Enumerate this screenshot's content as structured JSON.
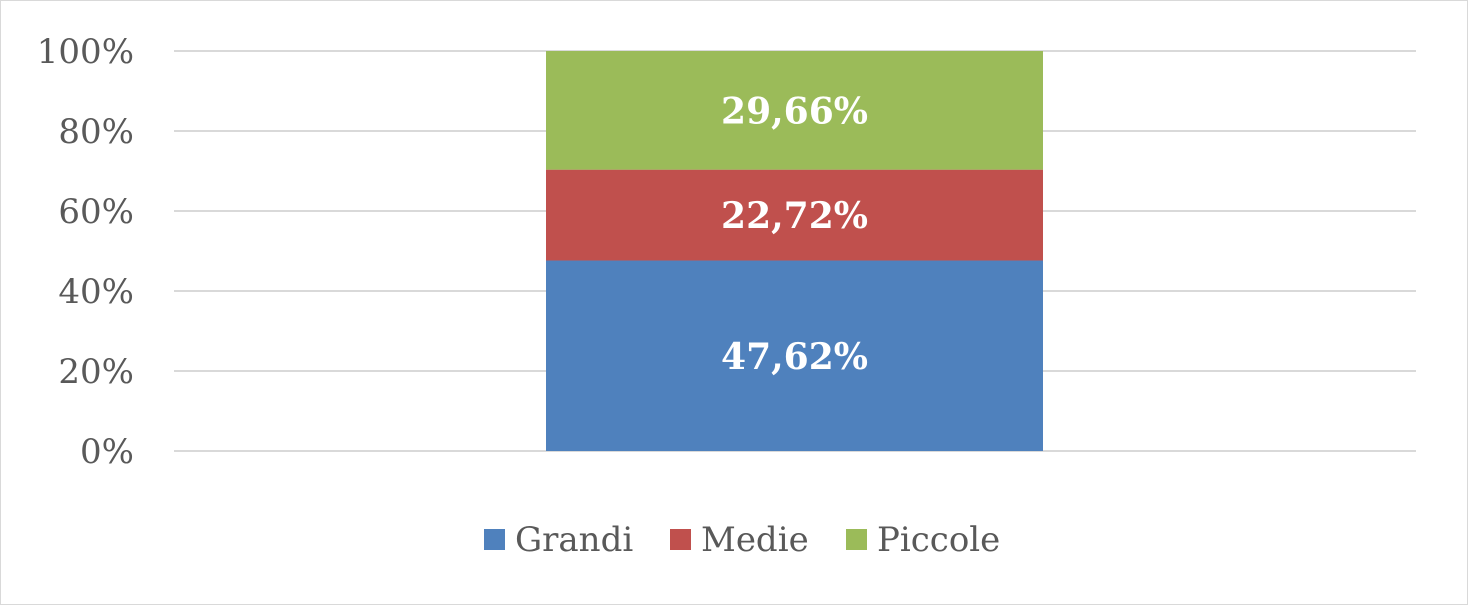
{
  "chart_data": {
    "type": "bar",
    "stacked": true,
    "percent": true,
    "categories": [
      ""
    ],
    "series": [
      {
        "name": "Grandi",
        "values": [
          47.62
        ],
        "label": "47,62%",
        "color": "#4f81bd"
      },
      {
        "name": "Medie",
        "values": [
          22.72
        ],
        "label": "22,72%",
        "color": "#c0504d"
      },
      {
        "name": "Piccole",
        "values": [
          29.66
        ],
        "label": "29,66%",
        "color": "#9bbb59"
      }
    ],
    "yticks": [
      "0%",
      "20%",
      "40%",
      "60%",
      "80%",
      "100%"
    ],
    "ylim": [
      0,
      100
    ],
    "grid": true,
    "legend": "bottom",
    "title": "",
    "xlabel": "",
    "ylabel": ""
  }
}
